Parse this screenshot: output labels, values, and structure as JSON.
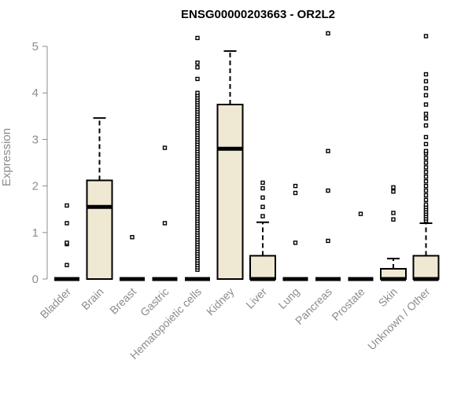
{
  "chart_data": {
    "type": "boxplot",
    "title": "ENSG00000203663 - OR2L2",
    "ylabel": "Expression",
    "xlabel": "",
    "ylim": [
      0,
      5.3
    ],
    "yticks": [
      0,
      1,
      2,
      3,
      4,
      5
    ],
    "grid": false,
    "legend": "none",
    "colors": {
      "box_fill": "#efe8d3",
      "stroke": "#000000",
      "axis_text": "#8c8c8c"
    },
    "categories": [
      "Bladder",
      "Brain",
      "Breast",
      "Gastric",
      "Hematopoietic cells",
      "Kidney",
      "Liver",
      "Lung",
      "Pancreas",
      "Prostate",
      "Skin",
      "Unknown / Other"
    ],
    "boxes": [
      {
        "category": "Bladder",
        "min": 0,
        "q1": 0,
        "median": 0,
        "q3": 0,
        "max": 0,
        "outliers": [
          0.3,
          0.75,
          0.78,
          1.2,
          1.58
        ]
      },
      {
        "category": "Brain",
        "min": 0,
        "q1": 0,
        "median": 1.55,
        "q3": 2.12,
        "max": 3.46,
        "outliers": []
      },
      {
        "category": "Breast",
        "min": 0,
        "q1": 0,
        "median": 0,
        "q3": 0,
        "max": 0,
        "outliers": [
          0.9
        ]
      },
      {
        "category": "Gastric",
        "min": 0,
        "q1": 0,
        "median": 0,
        "q3": 0,
        "max": 0,
        "outliers": [
          1.2,
          2.82
        ]
      },
      {
        "category": "Hematopoietic cells",
        "min": 0,
        "q1": 0,
        "median": 0,
        "q3": 0,
        "max": 0,
        "outliers": [
          0.2,
          0.25,
          0.3,
          0.35,
          0.4,
          0.45,
          0.5,
          0.55,
          0.6,
          0.65,
          0.7,
          0.75,
          0.8,
          0.85,
          0.9,
          0.95,
          1.0,
          1.05,
          1.1,
          1.15,
          1.2,
          1.25,
          1.3,
          1.35,
          1.4,
          1.45,
          1.5,
          1.55,
          1.6,
          1.65,
          1.7,
          1.75,
          1.8,
          1.85,
          1.9,
          1.95,
          2.0,
          2.05,
          2.1,
          2.15,
          2.2,
          2.25,
          2.3,
          2.35,
          2.4,
          2.45,
          2.5,
          2.55,
          2.6,
          2.65,
          2.7,
          2.75,
          2.8,
          2.85,
          2.9,
          2.95,
          3.0,
          3.05,
          3.1,
          3.15,
          3.2,
          3.25,
          3.3,
          3.35,
          3.4,
          3.45,
          3.5,
          3.55,
          3.6,
          3.65,
          3.7,
          3.75,
          3.8,
          3.85,
          3.9,
          3.95,
          4.0,
          4.3,
          4.55,
          4.65,
          5.18
        ]
      },
      {
        "category": "Kidney",
        "min": 0,
        "q1": 0,
        "median": 2.8,
        "q3": 3.75,
        "max": 4.9,
        "outliers": []
      },
      {
        "category": "Liver",
        "min": 0,
        "q1": 0,
        "median": 0,
        "q3": 0.5,
        "max": 1.22,
        "outliers": [
          1.35,
          1.55,
          1.75,
          1.95,
          2.07
        ]
      },
      {
        "category": "Lung",
        "min": 0,
        "q1": 0,
        "median": 0,
        "q3": 0,
        "max": 0,
        "outliers": [
          0.78,
          1.85,
          2.0
        ]
      },
      {
        "category": "Pancreas",
        "min": 0,
        "q1": 0,
        "median": 0,
        "q3": 0,
        "max": 0,
        "outliers": [
          0.82,
          1.9,
          2.75,
          5.28
        ]
      },
      {
        "category": "Prostate",
        "min": 0,
        "q1": 0,
        "median": 0,
        "q3": 0,
        "max": 0,
        "outliers": [
          1.4
        ]
      },
      {
        "category": "Skin",
        "min": 0,
        "q1": 0,
        "median": 0,
        "q3": 0.22,
        "max": 0.44,
        "outliers": [
          1.28,
          1.42,
          1.88,
          1.97
        ]
      },
      {
        "category": "Unknown / Other",
        "min": 0,
        "q1": 0,
        "median": 0,
        "q3": 0.5,
        "max": 1.2,
        "outliers": [
          1.25,
          1.3,
          1.35,
          1.4,
          1.45,
          1.5,
          1.55,
          1.6,
          1.7,
          1.8,
          1.9,
          2.0,
          2.1,
          2.2,
          2.3,
          2.4,
          2.5,
          2.6,
          2.7,
          2.75,
          2.9,
          3.05,
          3.3,
          3.45,
          3.55,
          3.75,
          3.95,
          4.1,
          4.25,
          4.4,
          5.22
        ]
      }
    ]
  }
}
